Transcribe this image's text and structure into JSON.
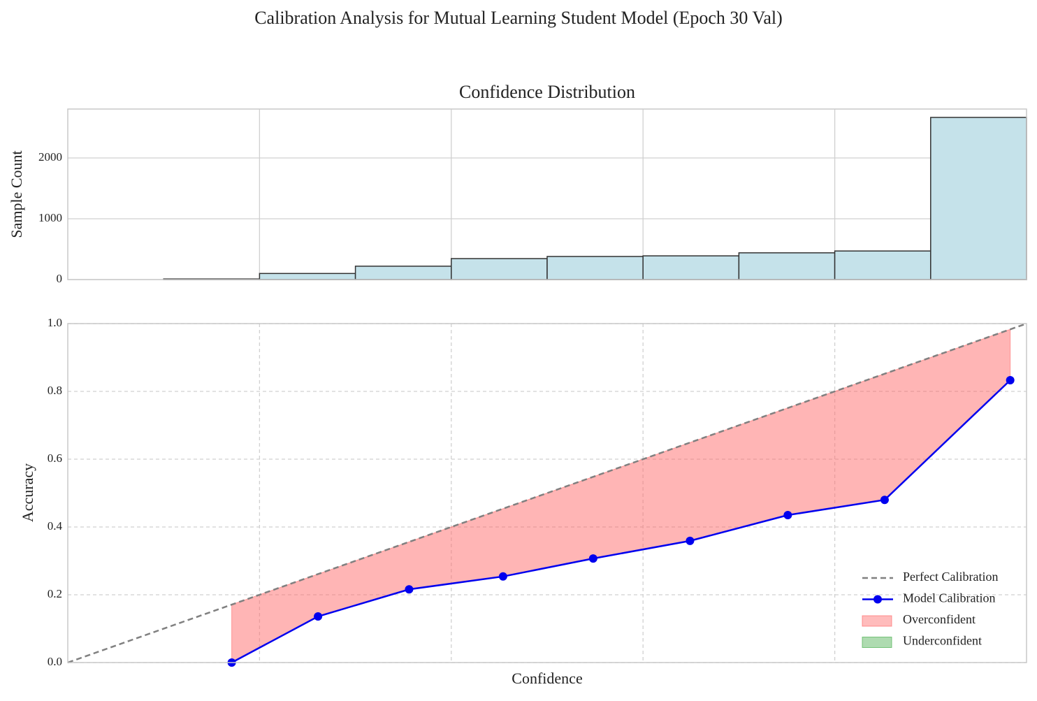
{
  "title": "Calibration Analysis for Mutual Learning Student Model (Epoch 30 Val)",
  "chart_data": [
    {
      "type": "histogram",
      "title": "Confidence Distribution",
      "ylabel": "Sample Count",
      "bins": [
        0,
        0.1,
        0.2,
        0.3,
        0.4,
        0.5,
        0.6,
        0.7,
        0.8,
        0.9,
        1.0
      ],
      "values": [
        0,
        10,
        100,
        220,
        345,
        380,
        390,
        440,
        470,
        2667
      ],
      "color": "#c5e2ea",
      "edgecolor": "#333333",
      "xlim": [
        0,
        1
      ],
      "xticks": [
        0.2,
        0.4,
        0.6,
        0.8
      ],
      "ylim": [
        0,
        2805
      ],
      "yticks": [
        0,
        1000,
        2000
      ],
      "grid": "solid"
    },
    {
      "type": "line",
      "xlabel": "Confidence",
      "ylabel": "Accuracy",
      "xlim": [
        0,
        1
      ],
      "xticks": [
        0.2,
        0.4,
        0.6,
        0.8
      ],
      "ylim": [
        0,
        1
      ],
      "yticks": [
        {
          "value": 0,
          "label": "0.0"
        },
        0.2,
        0.4,
        0.6,
        0.8,
        {
          "value": 1,
          "label": "1.0"
        }
      ],
      "grid": "dashed",
      "legend": "lower right",
      "series": [
        {
          "name": "Perfect Calibration",
          "color": "#808080",
          "dashed": true,
          "x": [
            0,
            1
          ],
          "values": [
            0,
            1
          ]
        },
        {
          "name": "Model Calibration",
          "color": "#0000ee",
          "markers": true,
          "x": [
            0.171,
            0.261,
            0.356,
            0.454,
            0.548,
            0.649,
            0.751,
            0.852,
            0.983
          ],
          "values": [
            0,
            0.136,
            0.216,
            0.254,
            0.307,
            0.359,
            0.435,
            0.48,
            0.833
          ]
        }
      ],
      "fills": [
        {
          "name": "Overconfident",
          "color": "#ff6b6b"
        },
        {
          "name": "Underconfident",
          "color": "#4caf50"
        }
      ]
    }
  ]
}
